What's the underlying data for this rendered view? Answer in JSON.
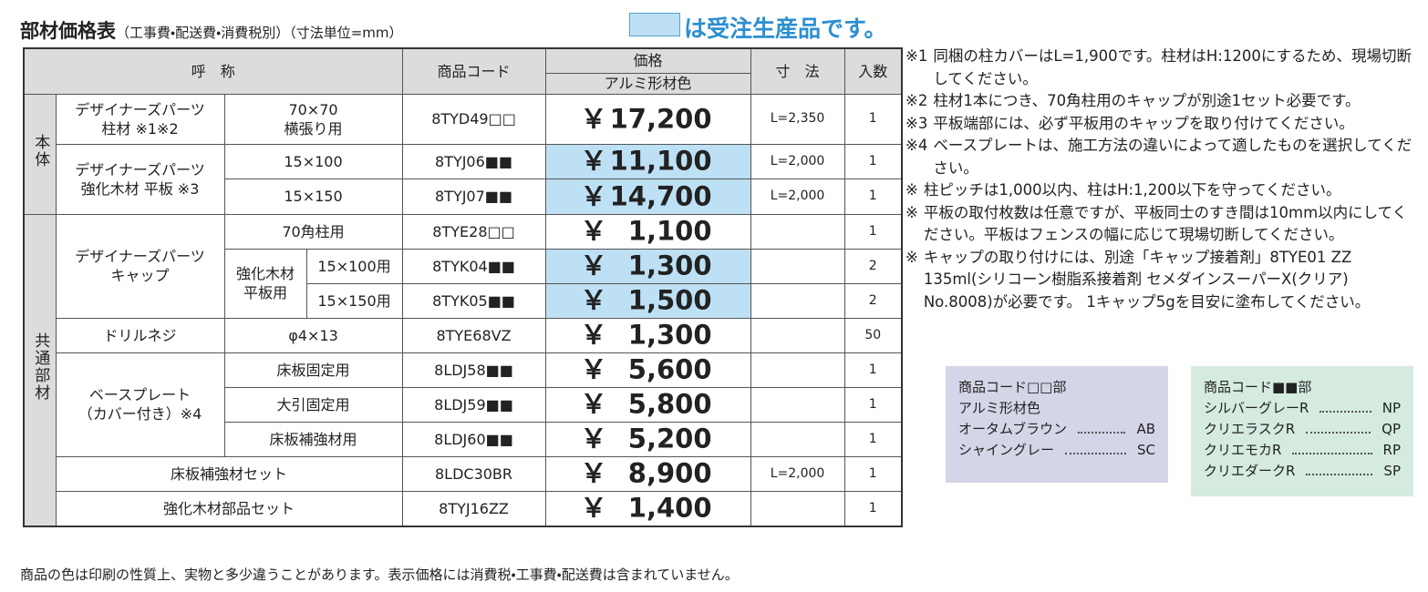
{
  "header": {
    "title": "部材価格表",
    "subtitle": "（工事費・配送費・消費税別）",
    "unit": "（寸法単位=mm）",
    "legend": "は受注生産品です。"
  },
  "table": {
    "columns": {
      "name": "呼　称",
      "code": "商品コード",
      "price": "価格",
      "price_sub": "アルミ形材色",
      "size": "寸　法",
      "qty": "入数"
    },
    "groups": [
      "本体",
      "共通部材"
    ],
    "yen": "￥",
    "rows": [
      {
        "name": "デザイナーズパーツ\n柱材 ※1※2",
        "spec": "70×70\n横張り用",
        "code": "8TYD49□□",
        "price": "17,200",
        "size": "L=2,350",
        "qty": "1",
        "made_to_order": false
      },
      {
        "name": "デザイナーズパーツ\n強化木材 平板 ※3",
        "spec": "15×100",
        "code": "8TYJ06■■",
        "price": "11,100",
        "size": "L=2,000",
        "qty": "1",
        "made_to_order": true
      },
      {
        "spec": "15×150",
        "code": "8TYJ07■■",
        "price": "14,700",
        "size": "L=2,000",
        "qty": "1",
        "made_to_order": true
      },
      {
        "name": "デザイナーズパーツ\nキャップ",
        "spec": "70角柱用",
        "code": "8TYE28□□",
        "price": "1,100",
        "qty": "1",
        "made_to_order": false
      },
      {
        "sub": "強化木材\n平板用",
        "spec": "15×100用",
        "code": "8TYK04■■",
        "price": "1,300",
        "qty": "2",
        "made_to_order": true
      },
      {
        "spec": "15×150用",
        "code": "8TYK05■■",
        "price": "1,500",
        "qty": "2",
        "made_to_order": true
      },
      {
        "name": "ドリルネジ",
        "spec": "φ4×13",
        "code": "8TYE68VZ",
        "price": "1,300",
        "qty": "50",
        "made_to_order": false
      },
      {
        "name": "ベースプレート\n（カバー付き）※4",
        "spec": "床板固定用",
        "code": "8LDJ58■■",
        "price": "5,600",
        "qty": "1",
        "made_to_order": false
      },
      {
        "spec": "大引固定用",
        "code": "8LDJ59■■",
        "price": "5,800",
        "qty": "1",
        "made_to_order": false
      },
      {
        "spec": "床板補強材用",
        "code": "8LDJ60■■",
        "price": "5,200",
        "qty": "1",
        "made_to_order": false
      },
      {
        "name": "床板補強材セット",
        "code": "8LDC30BR",
        "price": "8,900",
        "size": "L=2,000",
        "qty": "1",
        "made_to_order": false
      },
      {
        "name": "強化木材部品セット",
        "code": "8TYJ16ZZ",
        "price": "1,400",
        "qty": "1",
        "made_to_order": false
      }
    ]
  },
  "notes": [
    {
      "mark": "※1",
      "text": "同梱の柱カバーはL=1,900です。柱材はH:1200にするため、現場切断してください。"
    },
    {
      "mark": "※2",
      "text": "柱材1本につき、70角柱用のキャップが別途1セット必要です。"
    },
    {
      "mark": "※3",
      "text": "平板端部には、必ず平板用のキャップを取り付けてください。"
    },
    {
      "mark": "※4",
      "text": "ベースプレートは、施工方法の違いによって適したものを選択してください。"
    },
    {
      "mark": "※",
      "text": "柱ピッチは1,000以内、柱はH:1,200以下を守ってください。"
    },
    {
      "mark": "※",
      "text": "平板の取付枚数は任意ですが、平板同士のすき間は10mm以内にしてください。平板はフェンスの幅に応じて現場切断してください。"
    },
    {
      "mark": "※",
      "text": "キャップの取り付けには、別途「キャップ接着剤」8TYE01 ZZ 135ml(シリコーン樹脂系接着剤 セメダインスーパーX(クリア) No.8008)が必要です。 1キャップ5gを目安に塗布してください。"
    }
  ],
  "color_boxes": [
    {
      "title": "商品コード□□部",
      "subtitle": "アルミ形材色",
      "items": [
        {
          "name": "オータムブラウン",
          "code": "AB"
        },
        {
          "name": "シャイングレー",
          "code": "SC"
        }
      ]
    },
    {
      "title": "商品コード■■部",
      "items": [
        {
          "name": "シルバーグレーR",
          "code": "NP"
        },
        {
          "name": "クリエラスクR",
          "code": "QP"
        },
        {
          "name": "クリエモカR",
          "code": "RP"
        },
        {
          "name": "クリエダークR",
          "code": "SP"
        }
      ]
    }
  ],
  "footer": "商品の色は印刷の性質上、実物と多少違うことがあります。表示価格には消費税・工事費・配送費は含まれていません。"
}
